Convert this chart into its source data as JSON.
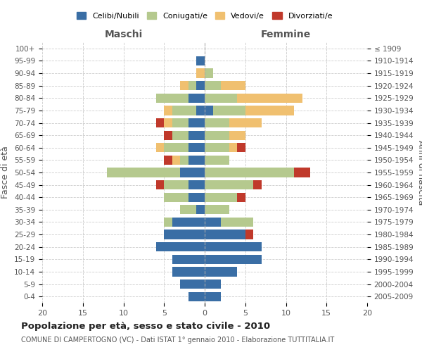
{
  "age_groups": [
    "100+",
    "95-99",
    "90-94",
    "85-89",
    "80-84",
    "75-79",
    "70-74",
    "65-69",
    "60-64",
    "55-59",
    "50-54",
    "45-49",
    "40-44",
    "35-39",
    "30-34",
    "25-29",
    "20-24",
    "15-19",
    "10-14",
    "5-9",
    "0-4"
  ],
  "birth_years": [
    "≤ 1909",
    "1910-1914",
    "1915-1919",
    "1920-1924",
    "1925-1929",
    "1930-1934",
    "1935-1939",
    "1940-1944",
    "1945-1949",
    "1950-1954",
    "1955-1959",
    "1960-1964",
    "1965-1969",
    "1970-1974",
    "1975-1979",
    "1980-1984",
    "1985-1989",
    "1990-1994",
    "1995-1999",
    "2000-2004",
    "2005-2009"
  ],
  "maschi": {
    "celibi": [
      0,
      1,
      0,
      1,
      2,
      1,
      2,
      2,
      2,
      2,
      3,
      2,
      2,
      1,
      4,
      5,
      6,
      4,
      4,
      3,
      2
    ],
    "coniugati": [
      0,
      0,
      0,
      1,
      4,
      3,
      2,
      2,
      3,
      1,
      9,
      3,
      3,
      2,
      1,
      0,
      0,
      0,
      0,
      0,
      0
    ],
    "vedovi": [
      0,
      0,
      1,
      1,
      0,
      1,
      1,
      0,
      1,
      1,
      0,
      0,
      0,
      0,
      0,
      0,
      0,
      0,
      0,
      0,
      0
    ],
    "divorziati": [
      0,
      0,
      0,
      0,
      0,
      0,
      1,
      1,
      0,
      1,
      0,
      1,
      0,
      0,
      0,
      0,
      0,
      0,
      0,
      0,
      0
    ]
  },
  "femmine": {
    "nubili": [
      0,
      0,
      0,
      0,
      0,
      1,
      0,
      0,
      0,
      0,
      0,
      0,
      0,
      0,
      2,
      5,
      7,
      7,
      4,
      2,
      2
    ],
    "coniugate": [
      0,
      0,
      1,
      2,
      4,
      4,
      3,
      3,
      3,
      3,
      11,
      6,
      4,
      3,
      4,
      0,
      0,
      0,
      0,
      0,
      0
    ],
    "vedove": [
      0,
      0,
      0,
      3,
      8,
      6,
      4,
      2,
      1,
      0,
      0,
      0,
      0,
      0,
      0,
      0,
      0,
      0,
      0,
      0,
      0
    ],
    "divorziate": [
      0,
      0,
      0,
      0,
      0,
      0,
      0,
      0,
      1,
      0,
      2,
      1,
      1,
      0,
      0,
      1,
      0,
      0,
      0,
      0,
      0
    ]
  },
  "colors": {
    "celibi": "#3a6ea5",
    "coniugati": "#b5c98e",
    "vedovi": "#f0c070",
    "divorziati": "#c0392b"
  },
  "xlim": 20,
  "title": "Popolazione per età, sesso e stato civile - 2010",
  "subtitle": "COMUNE DI CAMPERTOGNO (VC) - Dati ISTAT 1° gennaio 2010 - Elaborazione TUTTITALIA.IT",
  "ylabel_left": "Fasce di età",
  "ylabel_right": "Anni di nascita",
  "xlabel_maschi": "Maschi",
  "xlabel_femmine": "Femmine",
  "legend_labels": [
    "Celibi/Nubili",
    "Coniugati/e",
    "Vedovi/e",
    "Divorziati/e"
  ],
  "background_color": "#ffffff",
  "grid_color": "#cccccc"
}
